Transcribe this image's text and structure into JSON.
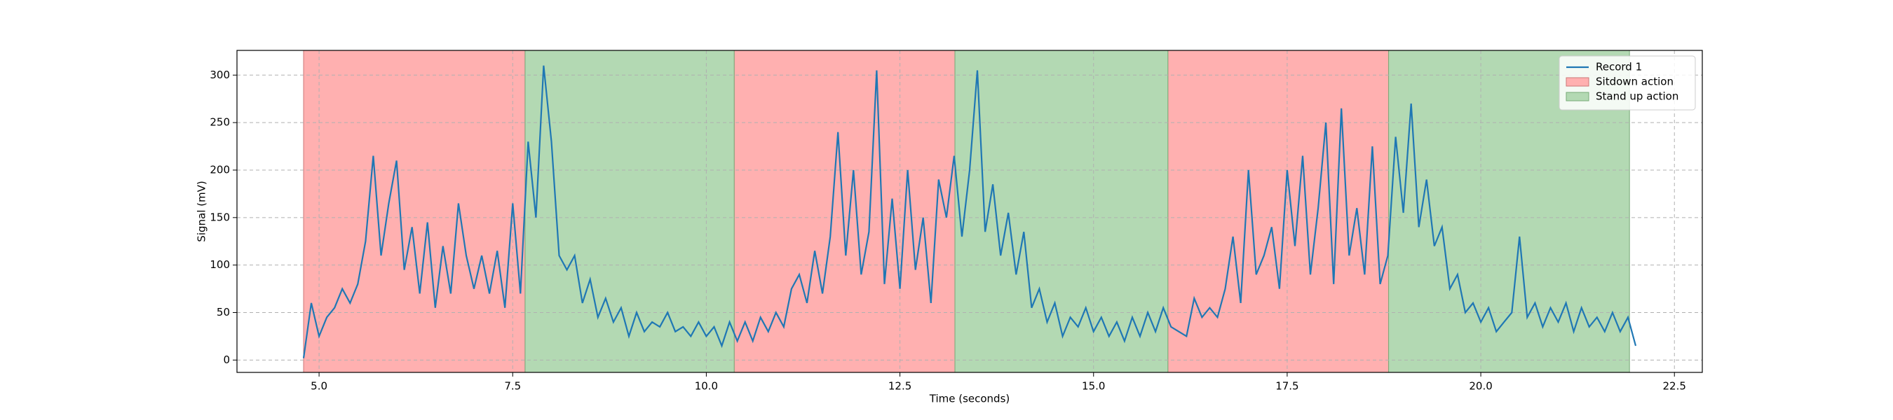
{
  "chart_data": {
    "type": "line",
    "xlabel": "Time (seconds)",
    "ylabel": "Signal (mV)",
    "xlim": [
      3.94,
      22.86
    ],
    "ylim": [
      -13,
      326
    ],
    "xticks": [
      {
        "value": 5,
        "label": "5.0"
      },
      7.5,
      {
        "value": 10,
        "label": "10.0"
      },
      12.5,
      {
        "value": 15,
        "label": "15.0"
      },
      17.5,
      {
        "value": 20,
        "label": "20.0"
      },
      22.5
    ],
    "yticks": [
      0,
      50,
      100,
      150,
      200,
      250,
      300
    ],
    "grid": true,
    "legend": "upper right",
    "series": [
      {
        "name": "Record 1",
        "color": "#1f77b4",
        "x": [
          4.8,
          4.9,
          5.0,
          5.1,
          5.2,
          5.3,
          5.4,
          5.5,
          5.6,
          5.7,
          5.8,
          5.9,
          6.0,
          6.1,
          6.2,
          6.3,
          6.4,
          6.5,
          6.6,
          6.7,
          6.8,
          6.9,
          7.0,
          7.1,
          7.2,
          7.3,
          7.4,
          7.5,
          7.6,
          7.7,
          7.8,
          7.9,
          8.0,
          8.1,
          8.2,
          8.3,
          8.4,
          8.5,
          8.6,
          8.7,
          8.8,
          8.9,
          9.0,
          9.1,
          9.2,
          9.3,
          9.4,
          9.5,
          9.6,
          9.7,
          9.8,
          9.9,
          10.0,
          10.1,
          10.2,
          10.3,
          10.4,
          10.5,
          10.6,
          10.7,
          10.8,
          10.9,
          11.0,
          11.1,
          11.2,
          11.3,
          11.4,
          11.5,
          11.6,
          11.7,
          11.8,
          11.9,
          12.0,
          12.1,
          12.2,
          12.3,
          12.4,
          12.5,
          12.6,
          12.7,
          12.8,
          12.9,
          13.0,
          13.1,
          13.2,
          13.3,
          13.4,
          13.5,
          13.6,
          13.7,
          13.8,
          13.9,
          14.0,
          14.1,
          14.2,
          14.3,
          14.4,
          14.5,
          14.6,
          14.7,
          14.8,
          14.9,
          15.0,
          15.1,
          15.2,
          15.3,
          15.4,
          15.5,
          15.6,
          15.7,
          15.8,
          15.9,
          16.0,
          16.1,
          16.2,
          16.3,
          16.4,
          16.5,
          16.6,
          16.7,
          16.8,
          16.9,
          17.0,
          17.1,
          17.2,
          17.3,
          17.4,
          17.5,
          17.6,
          17.7,
          17.8,
          17.9,
          18.0,
          18.1,
          18.2,
          18.3,
          18.4,
          18.5,
          18.6,
          18.7,
          18.8,
          18.9,
          19.0,
          19.1,
          19.2,
          19.3,
          19.4,
          19.5,
          19.6,
          19.7,
          19.8,
          19.9,
          20.0,
          20.1,
          20.2,
          20.3,
          20.4,
          20.5,
          20.6,
          20.7,
          20.8,
          20.9,
          21.0,
          21.1,
          21.2,
          21.3,
          21.4,
          21.5,
          21.6,
          21.7,
          21.8,
          21.9,
          22.0
        ],
        "values": [
          2,
          60,
          25,
          45,
          55,
          75,
          60,
          80,
          125,
          215,
          110,
          165,
          210,
          95,
          140,
          70,
          145,
          55,
          120,
          70,
          165,
          110,
          75,
          110,
          70,
          115,
          55,
          165,
          70,
          230,
          150,
          310,
          230,
          110,
          95,
          110,
          60,
          85,
          45,
          65,
          40,
          55,
          25,
          50,
          30,
          40,
          35,
          50,
          30,
          35,
          25,
          40,
          25,
          35,
          15,
          40,
          20,
          40,
          20,
          45,
          30,
          50,
          35,
          75,
          90,
          60,
          115,
          70,
          130,
          240,
          110,
          200,
          90,
          135,
          305,
          80,
          170,
          75,
          200,
          95,
          150,
          60,
          190,
          150,
          215,
          130,
          200,
          305,
          135,
          185,
          110,
          155,
          90,
          135,
          55,
          75,
          40,
          60,
          25,
          45,
          35,
          55,
          30,
          45,
          25,
          40,
          20,
          45,
          25,
          50,
          30,
          55,
          35,
          30,
          25,
          65,
          45,
          55,
          45,
          75,
          130,
          60,
          200,
          90,
          110,
          140,
          75,
          200,
          120,
          215,
          90,
          160,
          250,
          80,
          265,
          110,
          160,
          90,
          225,
          80,
          110,
          235,
          155,
          270,
          140,
          190,
          120,
          140,
          75,
          90,
          50,
          60,
          40,
          55,
          30,
          40,
          50,
          130,
          45,
          60,
          35,
          55,
          40,
          60,
          30,
          55,
          35,
          45,
          30,
          50,
          30,
          45,
          15
        ]
      }
    ],
    "spans": [
      {
        "name": "Sitdown action",
        "color": "#ffb0b0",
        "edge": "#c77",
        "ranges": [
          [
            4.8,
            7.66
          ],
          [
            10.36,
            13.21
          ],
          [
            15.96,
            18.81
          ]
        ]
      },
      {
        "name": "Stand up action",
        "color": "#b3d9b3",
        "edge": "#7a7",
        "ranges": [
          [
            7.66,
            10.36
          ],
          [
            13.21,
            15.96
          ],
          [
            18.81,
            21.92
          ]
        ]
      }
    ]
  }
}
